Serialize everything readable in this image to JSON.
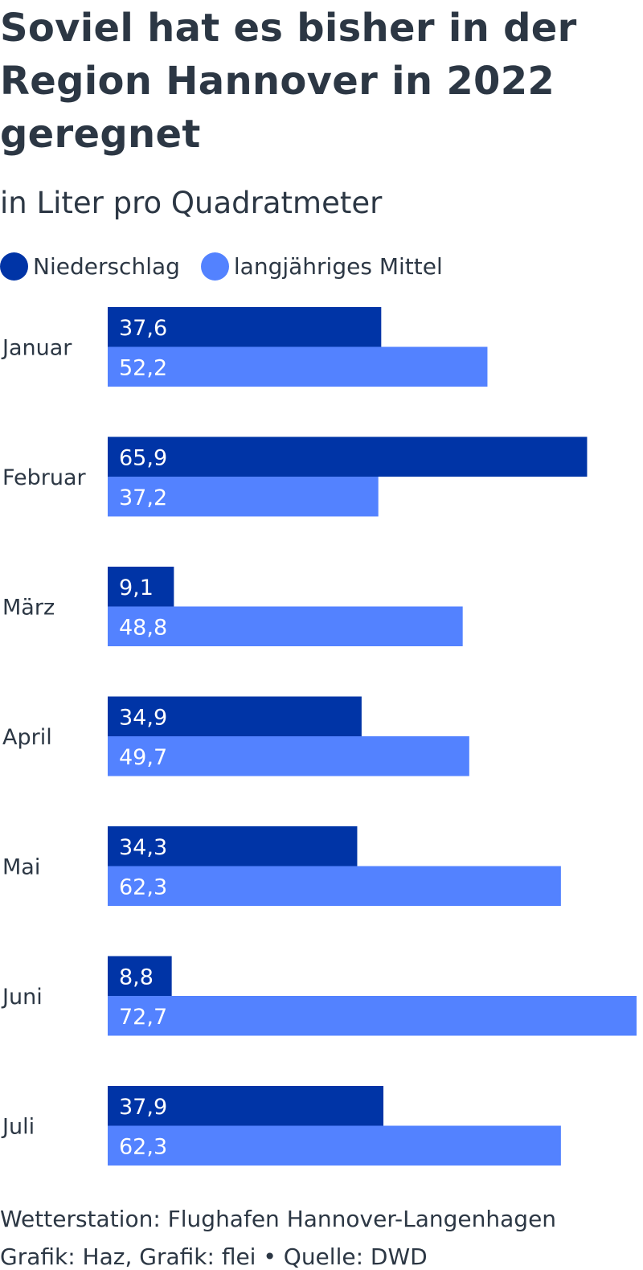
{
  "chart_data": {
    "type": "bar",
    "orientation": "horizontal",
    "title": "Soviel hat es bisher in der Region Hannover in 2022 geregnet",
    "subtitle": "in Liter pro Quadratmeter",
    "categories": [
      "Januar",
      "Februar",
      "März",
      "April",
      "Mai",
      "Juni",
      "Juli"
    ],
    "series": [
      {
        "name": "Niederschlag",
        "color": "#0034a6",
        "values": [
          37.6,
          65.9,
          9.1,
          34.9,
          34.3,
          8.8,
          37.9
        ],
        "labels": [
          "37,6",
          "65,9",
          "9,1",
          "34,9",
          "34,3",
          "8,8",
          "37,9"
        ]
      },
      {
        "name": "langjähriges Mittel",
        "color": "#5382ff",
        "values": [
          52.2,
          37.2,
          48.8,
          49.7,
          62.3,
          72.7,
          62.3
        ],
        "labels": [
          "52,2",
          "37,2",
          "48,8",
          "49,7",
          "62,3",
          "72,7",
          "62,3"
        ]
      }
    ],
    "xlim": [
      0,
      72.7
    ],
    "grid": false,
    "legend": "top-left"
  },
  "footer": {
    "station": "Wetterstation: Flughafen Hannover-Langenhagen",
    "credit": "Grafik: Haz, Grafik: flei • Quelle: DWD"
  }
}
